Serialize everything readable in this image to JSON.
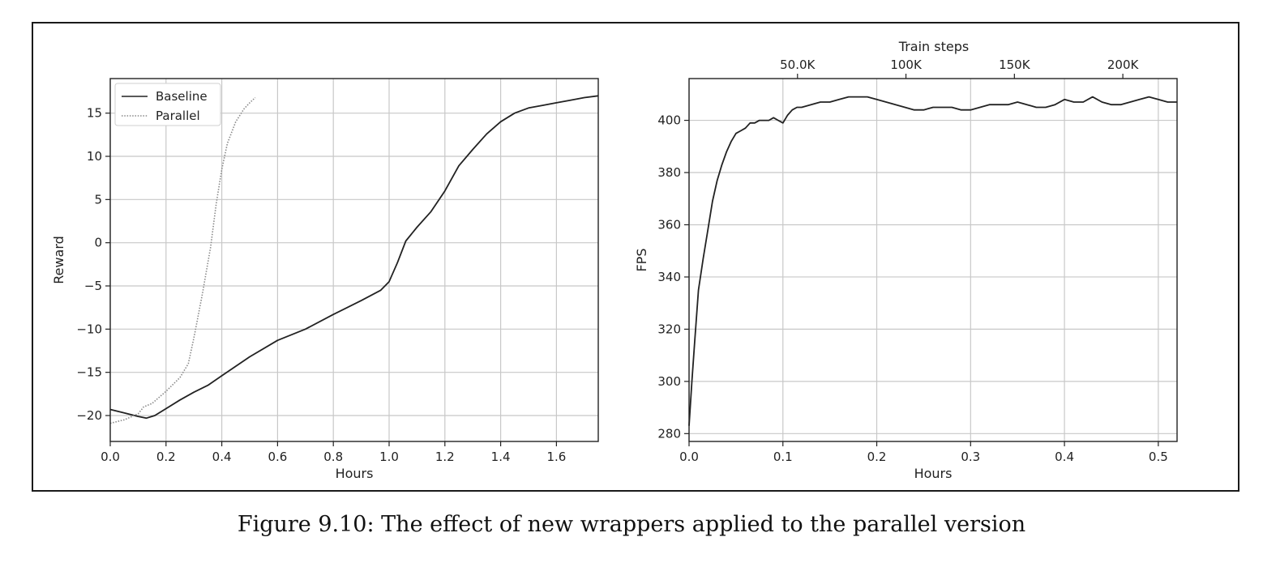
{
  "caption": "Figure 9.10: The effect of new wrappers applied to the parallel version",
  "chart_data": [
    {
      "type": "line",
      "xlabel": "Hours",
      "ylabel": "Reward",
      "xlim": [
        0,
        1.75
      ],
      "ylim": [
        -23,
        19
      ],
      "xticks": [
        0.0,
        0.2,
        0.4,
        0.6,
        0.8,
        1.0,
        1.2,
        1.4,
        1.6
      ],
      "xtick_labels": [
        "0.0",
        "0.2",
        "0.4",
        "0.6",
        "0.8",
        "1.0",
        "1.2",
        "1.4",
        "1.6"
      ],
      "yticks": [
        15,
        10,
        5,
        0,
        -5,
        -10,
        -15,
        -20
      ],
      "ytick_labels": [
        "15",
        "10",
        "5",
        "0",
        "−10",
        "−15",
        "−20"
      ],
      "ytick_labels_full": [
        "15",
        "10",
        "5",
        "0",
        "−5",
        "−10",
        "−15",
        "−20"
      ],
      "grid": true,
      "legend": "top-left",
      "series": [
        {
          "name": "Baseline",
          "style": "solid",
          "color": "#222222",
          "x": [
            0.0,
            0.05,
            0.1,
            0.13,
            0.16,
            0.2,
            0.25,
            0.3,
            0.35,
            0.4,
            0.5,
            0.6,
            0.7,
            0.8,
            0.9,
            0.97,
            1.0,
            1.03,
            1.06,
            1.1,
            1.15,
            1.2,
            1.25,
            1.3,
            1.35,
            1.4,
            1.45,
            1.5,
            1.55,
            1.6,
            1.65,
            1.7,
            1.75
          ],
          "y": [
            -19.3,
            -19.7,
            -20.1,
            -20.3,
            -20.0,
            -19.2,
            -18.2,
            -17.3,
            -16.5,
            -15.4,
            -13.2,
            -11.3,
            -10.0,
            -8.3,
            -6.7,
            -5.5,
            -4.5,
            -2.3,
            0.2,
            1.8,
            3.6,
            6.0,
            8.9,
            10.8,
            12.6,
            14.0,
            15.0,
            15.6,
            15.9,
            16.2,
            16.5,
            16.8,
            17.0
          ]
        },
        {
          "name": "Parallel",
          "style": "dotted",
          "color": "#888888",
          "x": [
            0.0,
            0.05,
            0.1,
            0.12,
            0.15,
            0.2,
            0.25,
            0.28,
            0.3,
            0.33,
            0.36,
            0.38,
            0.4,
            0.42,
            0.45,
            0.48,
            0.5,
            0.52
          ],
          "y": [
            -20.9,
            -20.5,
            -19.8,
            -19.0,
            -18.6,
            -17.2,
            -15.6,
            -14.0,
            -11.0,
            -6.0,
            -0.5,
            4.5,
            8.5,
            11.5,
            14.0,
            15.5,
            16.2,
            16.8
          ]
        }
      ]
    },
    {
      "type": "line",
      "xlabel": "Hours",
      "ylabel": "FPS",
      "x2label": "Train steps",
      "xlim": [
        0,
        0.52
      ],
      "ylim": [
        277,
        416
      ],
      "xticks": [
        0.0,
        0.1,
        0.2,
        0.3,
        0.4,
        0.5
      ],
      "xtick_labels": [
        "0.0",
        "0.1",
        "0.2",
        "0.3",
        "0.4",
        "0.5"
      ],
      "yticks": [
        400,
        380,
        360,
        340,
        320,
        300,
        280
      ],
      "ytick_labels": [
        "400",
        "380",
        "360",
        "340",
        "320",
        "300",
        "280"
      ],
      "x2ticks": [
        50000,
        100000,
        150000,
        200000
      ],
      "x2tick_labels": [
        "50.0K",
        "100K",
        "150K",
        "200K"
      ],
      "x2lim": [
        0,
        225000
      ],
      "grid": true,
      "series": [
        {
          "style": "solid",
          "color": "#222222",
          "x": [
            0.0,
            0.003,
            0.006,
            0.01,
            0.015,
            0.02,
            0.025,
            0.03,
            0.035,
            0.04,
            0.045,
            0.05,
            0.055,
            0.06,
            0.065,
            0.07,
            0.075,
            0.08,
            0.085,
            0.09,
            0.095,
            0.1,
            0.105,
            0.11,
            0.115,
            0.12,
            0.13,
            0.14,
            0.15,
            0.16,
            0.17,
            0.18,
            0.19,
            0.2,
            0.21,
            0.22,
            0.23,
            0.24,
            0.25,
            0.26,
            0.27,
            0.28,
            0.29,
            0.3,
            0.31,
            0.32,
            0.33,
            0.34,
            0.35,
            0.36,
            0.37,
            0.38,
            0.39,
            0.4,
            0.41,
            0.42,
            0.43,
            0.44,
            0.45,
            0.46,
            0.47,
            0.48,
            0.49,
            0.5,
            0.51,
            0.52
          ],
          "y": [
            283,
            300,
            315,
            335,
            347,
            358,
            369,
            377,
            383,
            388,
            392,
            395,
            396,
            397,
            399,
            399,
            400,
            400,
            400,
            401,
            400,
            399,
            402,
            404,
            405,
            405,
            406,
            407,
            407,
            408,
            409,
            409,
            409,
            408,
            407,
            406,
            405,
            404,
            404,
            405,
            405,
            405,
            404,
            404,
            405,
            406,
            406,
            406,
            407,
            406,
            405,
            405,
            406,
            408,
            407,
            407,
            409,
            407,
            406,
            406,
            407,
            408,
            409,
            408,
            407,
            407
          ]
        }
      ]
    }
  ]
}
